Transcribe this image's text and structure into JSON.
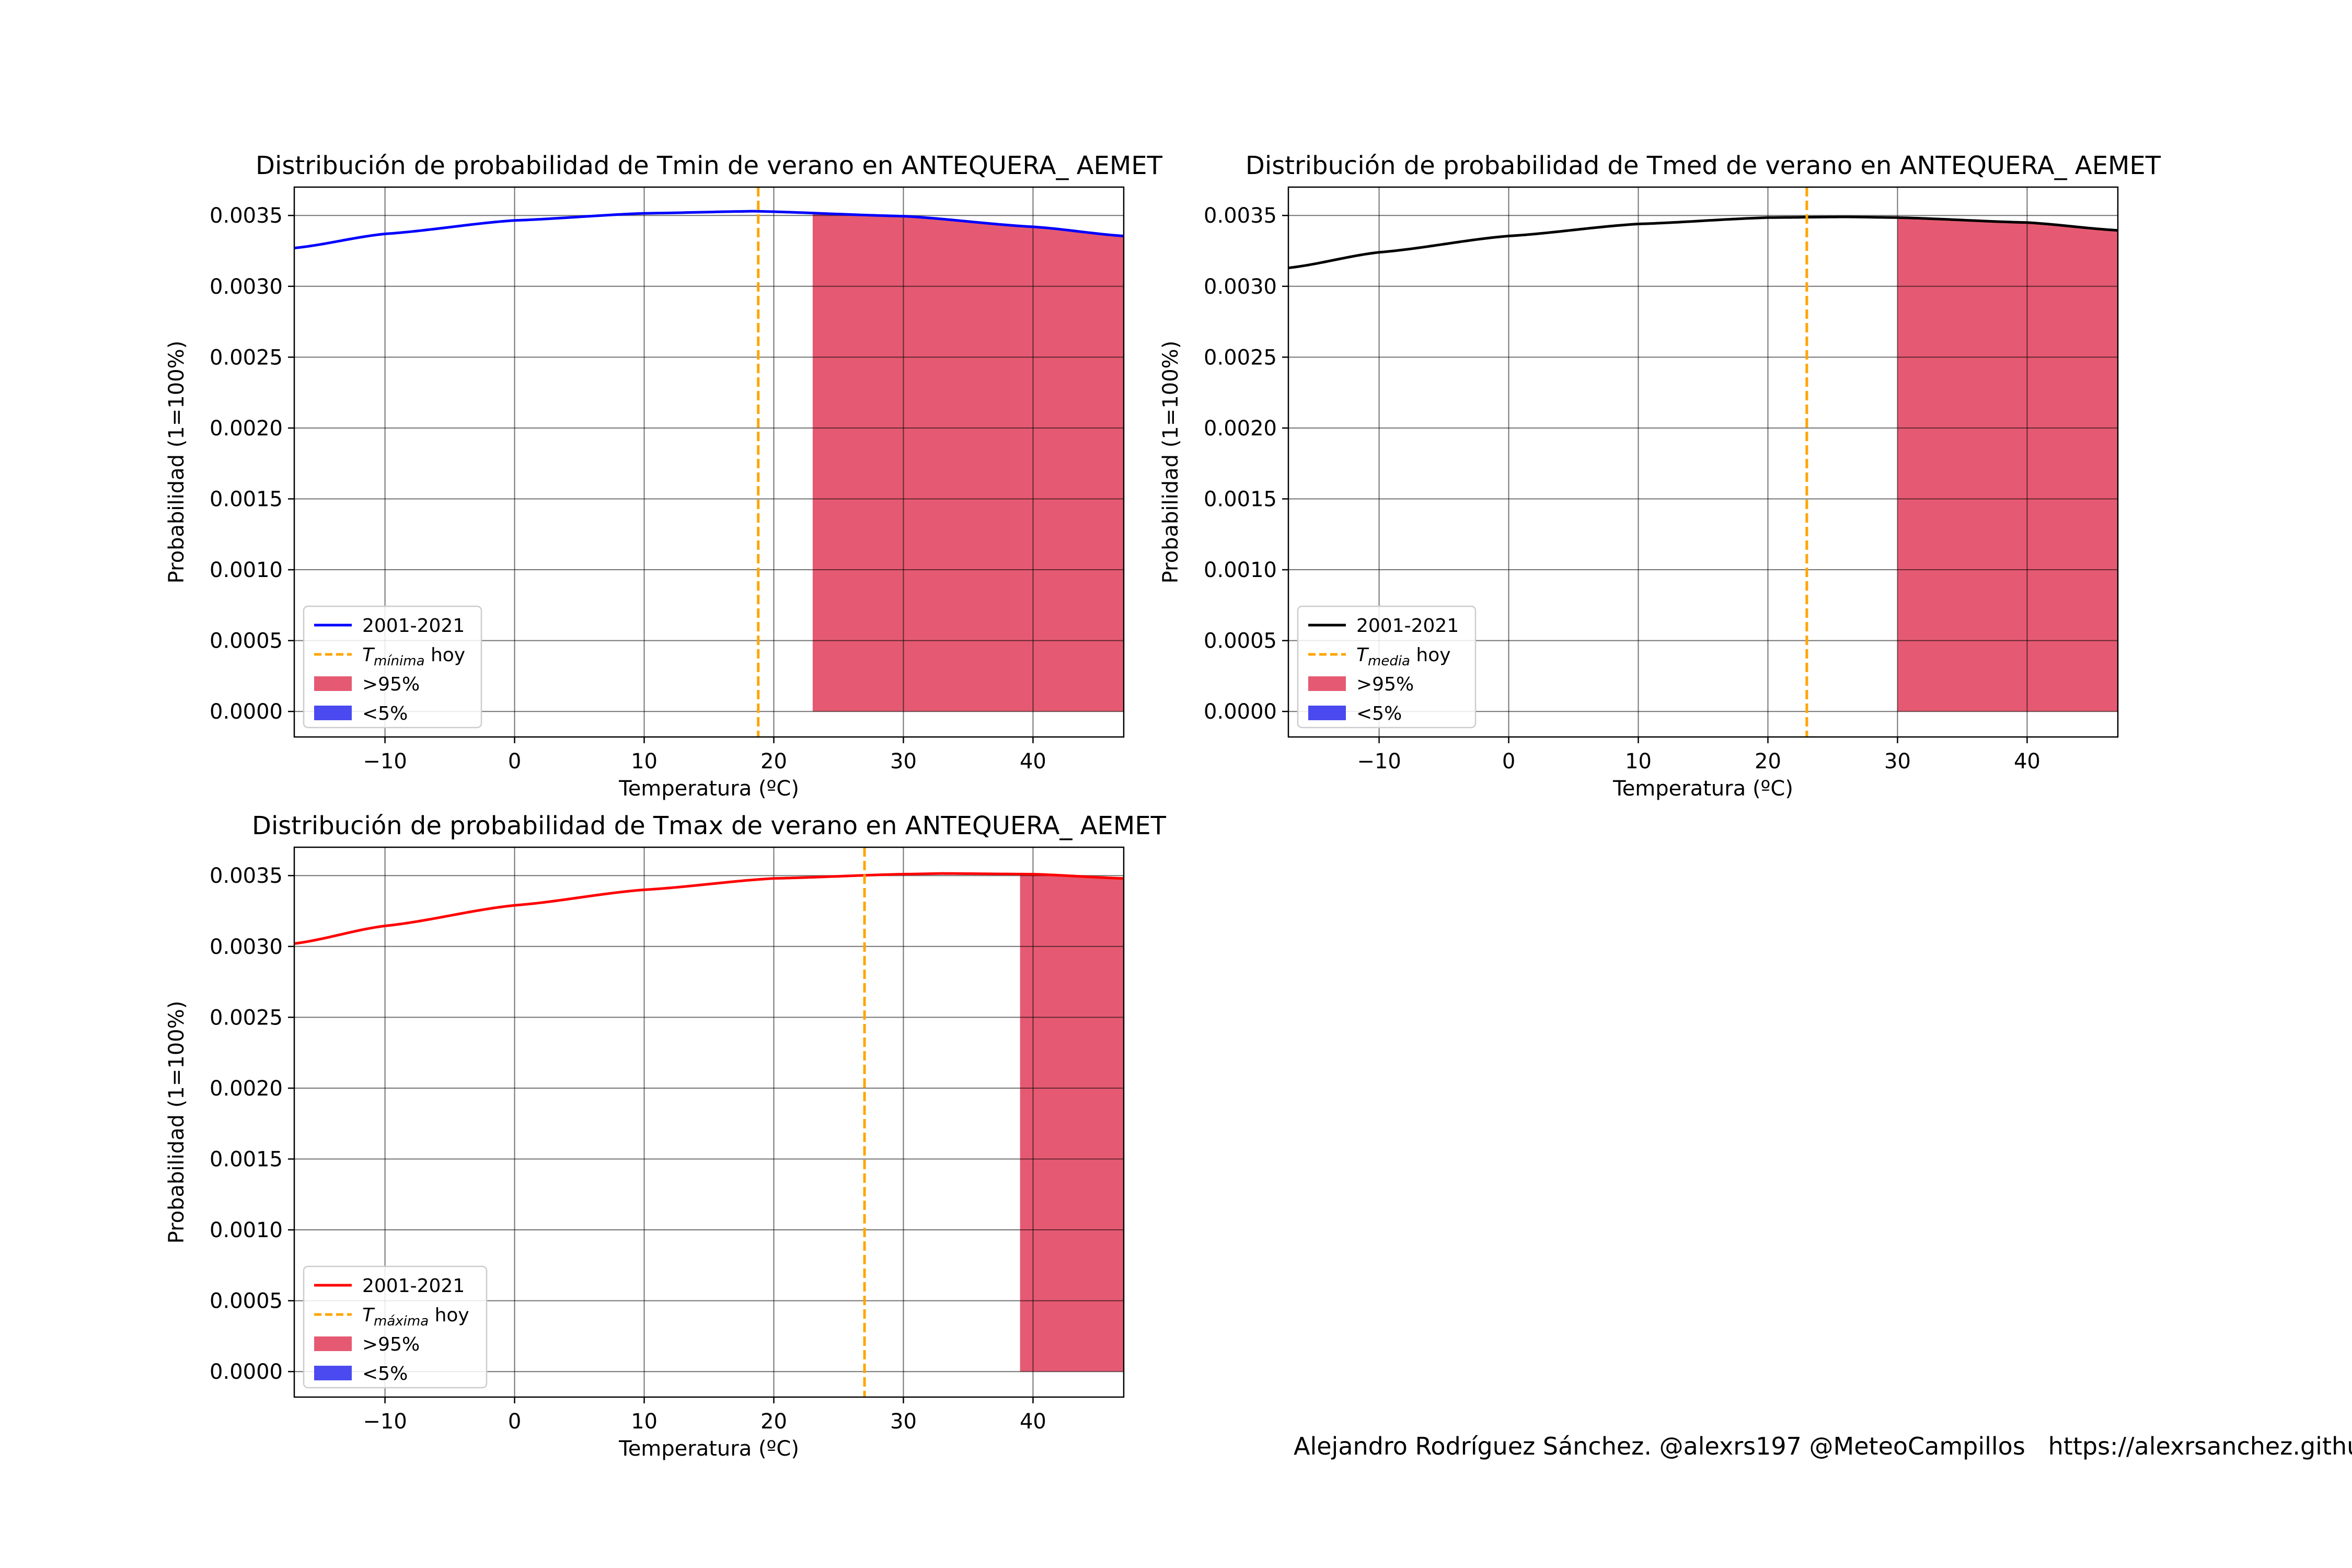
{
  "footer": {
    "credit": "Alejandro Rodríguez Sánchez. @alexrs197 @MeteoCampillos   https://alexrsanchez.githu"
  },
  "colors": {
    "grid": "#000000",
    "upper_fill": "#e55a72",
    "lower_fill": "#4a4af0",
    "today_line": "#ffa500"
  },
  "chart_data": [
    {
      "type": "line",
      "title": "Distribución de probabilidad de Tmin de verano en ANTEQUERA_ AEMET",
      "xlabel": "Temperatura (ºC)",
      "ylabel": "Probabilidad (1=100%)",
      "xlim": [
        -17,
        47
      ],
      "ylim": [
        -0.00018,
        0.0037
      ],
      "xticks": [
        "−10",
        "0",
        "10",
        "20",
        "30",
        "40"
      ],
      "xtick_values": [
        -10,
        0,
        10,
        20,
        30,
        40
      ],
      "yticks": [
        "0.0000",
        "0.0005",
        "0.0010",
        "0.0015",
        "0.0020",
        "0.0025",
        "0.0030",
        "0.0035"
      ],
      "ytick_values": [
        0,
        0.0005,
        0.001,
        0.0015,
        0.002,
        0.0025,
        0.003,
        0.0035
      ],
      "grid": true,
      "legend_position": "lower-left",
      "series": [
        {
          "name": "2001-2021",
          "color": "#0000ff",
          "x": [
            -17,
            -10,
            0,
            10,
            18.5,
            30,
            40,
            47
          ],
          "y": [
            0.00327,
            0.00337,
            0.003465,
            0.003515,
            0.00353,
            0.003495,
            0.00342,
            0.003355
          ]
        }
      ],
      "today": {
        "name_base": "T",
        "name_sub": "mínima",
        "name_suffix": " hoy",
        "x": 18.8
      },
      "upper_area": {
        "name": ">95%",
        "x_start": 23
      },
      "lower_area": {
        "name": "<5%"
      }
    },
    {
      "type": "line",
      "title": "Distribución de probabilidad de Tmed de verano en ANTEQUERA_ AEMET",
      "xlabel": "Temperatura (ºC)",
      "ylabel": "Probabilidad (1=100%)",
      "xlim": [
        -17,
        47
      ],
      "ylim": [
        -0.00018,
        0.0037
      ],
      "xticks": [
        "−10",
        "0",
        "10",
        "20",
        "30",
        "40"
      ],
      "xtick_values": [
        -10,
        0,
        10,
        20,
        30,
        40
      ],
      "yticks": [
        "0.0000",
        "0.0005",
        "0.0010",
        "0.0015",
        "0.0020",
        "0.0025",
        "0.0030",
        "0.0035"
      ],
      "ytick_values": [
        0,
        0.0005,
        0.001,
        0.0015,
        0.002,
        0.0025,
        0.003,
        0.0035
      ],
      "grid": true,
      "legend_position": "lower-left",
      "series": [
        {
          "name": "2001-2021",
          "color": "#000000",
          "x": [
            -17,
            -10,
            0,
            10,
            20,
            26,
            30,
            40,
            47
          ],
          "y": [
            0.00313,
            0.00324,
            0.003355,
            0.00344,
            0.003485,
            0.00349,
            0.003485,
            0.00345,
            0.003395
          ]
        }
      ],
      "today": {
        "name_base": "T",
        "name_sub": "media",
        "name_suffix": " hoy",
        "x": 23
      },
      "upper_area": {
        "name": ">95%",
        "x_start": 30
      },
      "lower_area": {
        "name": "<5%"
      }
    },
    {
      "type": "line",
      "title": "Distribución de probabilidad de Tmax de verano en ANTEQUERA_ AEMET",
      "xlabel": "Temperatura (ºC)",
      "ylabel": "Probabilidad (1=100%)",
      "xlim": [
        -17,
        47
      ],
      "ylim": [
        -0.00018,
        0.0037
      ],
      "xticks": [
        "−10",
        "0",
        "10",
        "20",
        "30",
        "40"
      ],
      "xtick_values": [
        -10,
        0,
        10,
        20,
        30,
        40
      ],
      "yticks": [
        "0.0000",
        "0.0005",
        "0.0010",
        "0.0015",
        "0.0020",
        "0.0025",
        "0.0030",
        "0.0035"
      ],
      "ytick_values": [
        0,
        0.0005,
        0.001,
        0.0015,
        0.002,
        0.0025,
        0.003,
        0.0035
      ],
      "grid": true,
      "legend_position": "lower-left",
      "series": [
        {
          "name": "2001-2021",
          "color": "#ff0000",
          "x": [
            -17,
            -10,
            0,
            10,
            20,
            30,
            33,
            40,
            47
          ],
          "y": [
            0.00302,
            0.003145,
            0.00329,
            0.0034,
            0.00348,
            0.00351,
            0.003515,
            0.00351,
            0.00348
          ]
        }
      ],
      "today": {
        "name_base": "T",
        "name_sub": "máxima",
        "name_suffix": " hoy",
        "x": 27
      },
      "upper_area": {
        "name": ">95%",
        "x_start": 39
      },
      "lower_area": {
        "name": "<5%"
      }
    }
  ]
}
